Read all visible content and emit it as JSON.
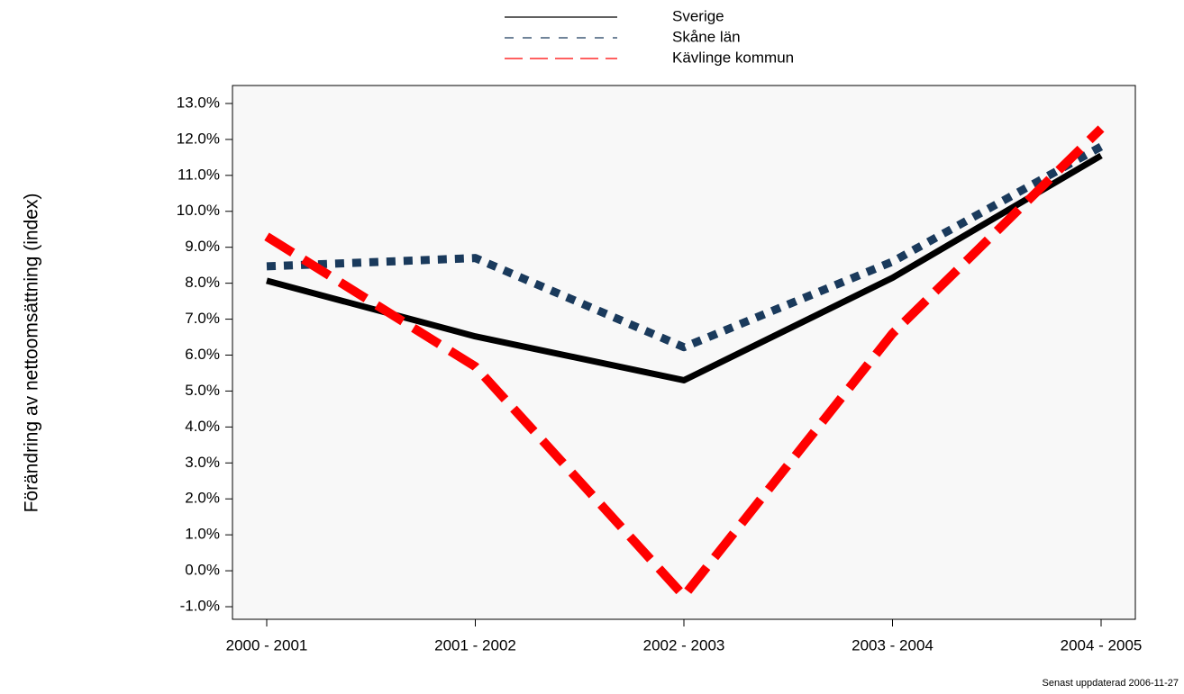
{
  "chart_data": {
    "type": "line",
    "y_label": "Förändring av nettoomsättning (index)",
    "footer": "Senast uppdaterad 2006-11-27",
    "categories": [
      "2000 - 2001",
      "2001 - 2002",
      "2002 - 2003",
      "2003 - 2004",
      "2004 - 2005"
    ],
    "series": [
      {
        "name": "Sverige",
        "color": "#000000",
        "dash": "solid",
        "values": [
          8.07,
          6.52,
          5.3,
          8.15,
          11.55
        ]
      },
      {
        "name": "Skåne län",
        "color": "#1a3a5c",
        "dash": "dot",
        "values": [
          8.47,
          8.7,
          6.22,
          8.6,
          11.8
        ]
      },
      {
        "name": "Kävlinge kommun",
        "color": "#ff0000",
        "dash": "dash",
        "values": [
          9.3,
          5.68,
          -0.7,
          6.6,
          12.3
        ]
      }
    ],
    "ylim": [
      -1.35,
      13.5
    ],
    "yticks": [
      {
        "value": -1,
        "label": "-1.0%"
      },
      {
        "value": 0,
        "label": "0.0%"
      },
      {
        "value": 1,
        "label": "1.0%"
      },
      {
        "value": 2,
        "label": "2.0%"
      },
      {
        "value": 3,
        "label": "3.0%"
      },
      {
        "value": 4,
        "label": "4.0%"
      },
      {
        "value": 5,
        "label": "5.0%"
      },
      {
        "value": 6,
        "label": "6.0%"
      },
      {
        "value": 7,
        "label": "7.0%"
      },
      {
        "value": 8,
        "label": "8.0%"
      },
      {
        "value": 9,
        "label": "9.0%"
      },
      {
        "value": 10,
        "label": "10.0%"
      },
      {
        "value": 11,
        "label": "11.0%"
      },
      {
        "value": 12,
        "label": "12.0%"
      },
      {
        "value": 13,
        "label": "13.0%"
      }
    ],
    "legend": "top"
  }
}
